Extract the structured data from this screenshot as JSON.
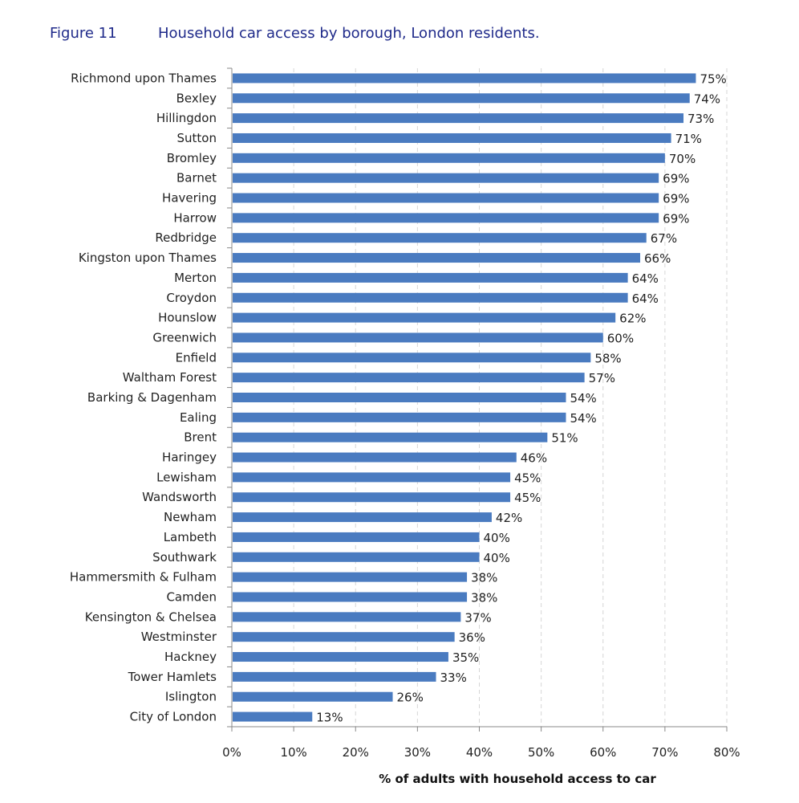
{
  "figure_label": "Figure 11",
  "chart_data": {
    "type": "bar",
    "orientation": "horizontal",
    "title": "Household car access by borough, London residents.",
    "xlabel": "% of adults with household access to car",
    "ylabel": "",
    "xlim": [
      0,
      80
    ],
    "xticks": [
      "0%",
      "10%",
      "20%",
      "30%",
      "40%",
      "50%",
      "60%",
      "70%",
      "80%"
    ],
    "grid": "vertical dashed",
    "bar_color": "#4a7bc0",
    "categories": [
      "Richmond upon Thames",
      "Bexley",
      "Hillingdon",
      "Sutton",
      "Bromley",
      "Barnet",
      "Havering",
      "Harrow",
      "Redbridge",
      "Kingston upon Thames",
      "Merton",
      "Croydon",
      "Hounslow",
      "Greenwich",
      "Enfield",
      "Waltham Forest",
      "Barking & Dagenham",
      "Ealing",
      "Brent",
      "Haringey",
      "Lewisham",
      "Wandsworth",
      "Newham",
      "Lambeth",
      "Southwark",
      "Hammersmith & Fulham",
      "Camden",
      "Kensington & Chelsea",
      "Westminster",
      "Hackney",
      "Tower Hamlets",
      "Islington",
      "City of London"
    ],
    "values": [
      75,
      74,
      73,
      71,
      70,
      69,
      69,
      69,
      67,
      66,
      64,
      64,
      62,
      60,
      58,
      57,
      54,
      54,
      51,
      46,
      45,
      45,
      42,
      40,
      40,
      38,
      38,
      37,
      36,
      35,
      33,
      26,
      13
    ],
    "data_labels": [
      "75%",
      "74%",
      "73%",
      "71%",
      "70%",
      "69%",
      "69%",
      "69%",
      "67%",
      "66%",
      "64%",
      "64%",
      "62%",
      "60%",
      "58%",
      "57%",
      "54%",
      "54%",
      "51%",
      "46%",
      "45%",
      "45%",
      "42%",
      "40%",
      "40%",
      "38%",
      "38%",
      "37%",
      "36%",
      "35%",
      "33%",
      "26%",
      "13%"
    ]
  }
}
